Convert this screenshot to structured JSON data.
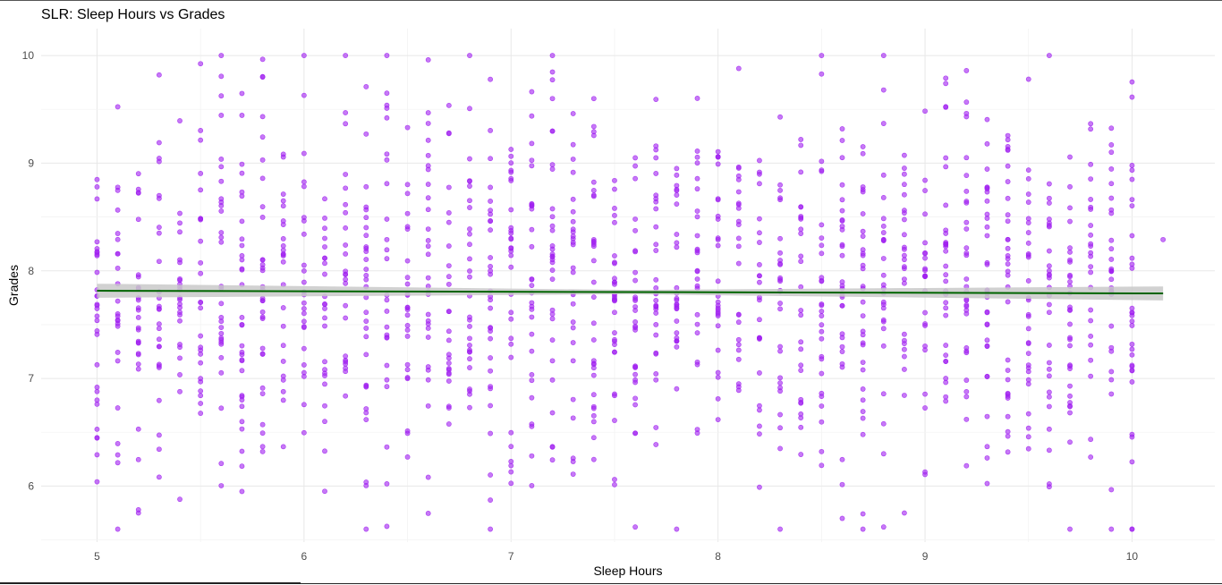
{
  "chart_data": {
    "type": "scatter",
    "title": "SLR: Sleep Hours vs Grades",
    "xlabel": "Sleep Hours",
    "ylabel": "Grades",
    "xlim": [
      4.73,
      10.4
    ],
    "ylim": [
      5.48,
      10.25
    ],
    "x_ticks": [
      5,
      6,
      7,
      8,
      9,
      10
    ],
    "y_ticks": [
      6,
      7,
      8,
      9,
      10
    ],
    "grid": true,
    "point_color": "#a020f0",
    "fit_line_color": "#006400",
    "confidence_band_color": "#c9c9c9",
    "fit": {
      "x": [
        5.0,
        10.15
      ],
      "y": [
        7.815,
        7.79
      ],
      "se": 0.05
    },
    "points_x_values": [
      5.0,
      5.1,
      5.2,
      5.3,
      5.4,
      5.5,
      5.6,
      5.7,
      5.8,
      5.9,
      6.0,
      6.1,
      6.2,
      6.3,
      6.4,
      6.5,
      6.6,
      6.7,
      6.8,
      6.9,
      7.0,
      7.1,
      7.2,
      7.3,
      7.4,
      7.5,
      7.6,
      7.7,
      7.8,
      7.9,
      8.0,
      8.1,
      8.2,
      8.3,
      8.4,
      8.5,
      8.6,
      8.7,
      8.8,
      8.9,
      9.0,
      9.1,
      9.2,
      9.3,
      9.4,
      9.5,
      9.6,
      9.7,
      9.8,
      9.9,
      10.0
    ],
    "points_per_column": 28,
    "points_mean": 7.8,
    "points_sd": 0.85,
    "points_y_range": [
      5.6,
      10.0
    ],
    "annotated_points": [
      {
        "x": 5.0,
        "y": 6.04
      },
      {
        "x": 5.2,
        "y": 5.78
      },
      {
        "x": 5.3,
        "y": 9.82
      },
      {
        "x": 5.7,
        "y": 5.95
      },
      {
        "x": 5.8,
        "y": 9.8
      },
      {
        "x": 6.6,
        "y": 9.96
      },
      {
        "x": 6.9,
        "y": 5.87
      },
      {
        "x": 7.6,
        "y": 5.62
      },
      {
        "x": 8.5,
        "y": 10.0
      },
      {
        "x": 8.6,
        "y": 5.7
      },
      {
        "x": 8.8,
        "y": 5.62
      },
      {
        "x": 8.9,
        "y": 5.75
      },
      {
        "x": 9.6,
        "y": 6.02
      },
      {
        "x": 10.15,
        "y": 8.29
      },
      {
        "x": 9.5,
        "y": 9.78
      },
      {
        "x": 9.1,
        "y": 9.74
      },
      {
        "x": 7.2,
        "y": 9.6
      },
      {
        "x": 7.4,
        "y": 9.6
      },
      {
        "x": 6.4,
        "y": 9.65
      },
      {
        "x": 8.8,
        "y": 9.68
      }
    ]
  }
}
